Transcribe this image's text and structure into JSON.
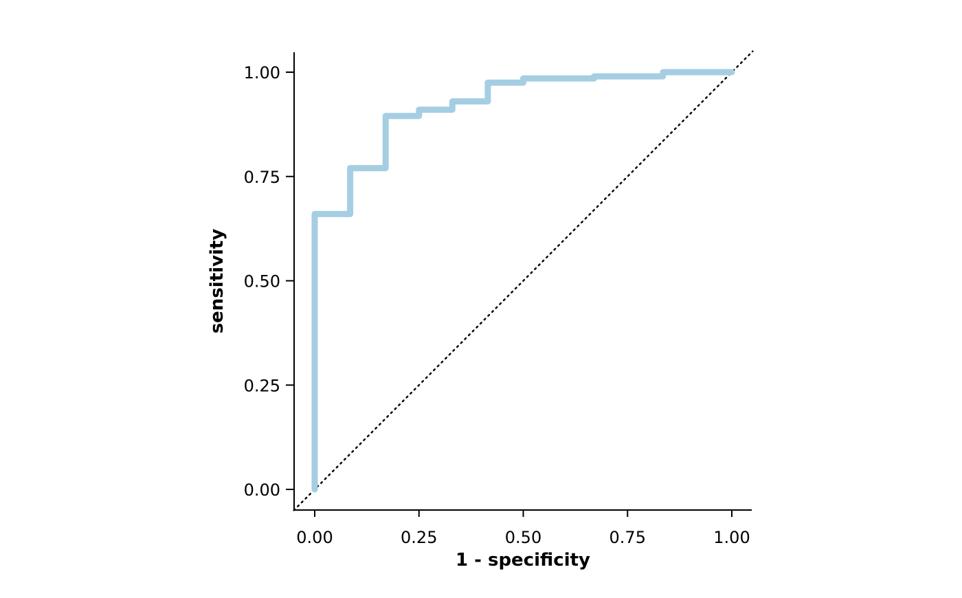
{
  "chart_data": {
    "type": "line",
    "title": "",
    "xlabel": "1 - specificity",
    "ylabel": "sensitivity",
    "xlim": [
      -0.1,
      1.1
    ],
    "ylim": [
      -0.05,
      1.05
    ],
    "x_ticks": [
      0,
      0.25,
      0.5,
      0.75,
      1
    ],
    "y_ticks": [
      0,
      0.25,
      0.5,
      0.75,
      1
    ],
    "x_tick_labels": [
      "0.00",
      "0.25",
      "0.50",
      "0.75",
      "1.00"
    ],
    "y_tick_labels": [
      "0.00",
      "0.25",
      "0.50",
      "0.75",
      "1.00"
    ],
    "grid": false,
    "step": true,
    "series": [
      {
        "color": "#a6cee3",
        "x": [
          0.0,
          0.0,
          0.085,
          0.085,
          0.17,
          0.17,
          0.25,
          0.25,
          0.33,
          0.33,
          0.415,
          0.415,
          0.5,
          0.5,
          0.67,
          0.67,
          0.835,
          0.835,
          1.0
        ],
        "y": [
          0.0,
          0.66,
          0.66,
          0.77,
          0.77,
          0.895,
          0.895,
          0.91,
          0.91,
          0.93,
          0.93,
          0.975,
          0.975,
          0.985,
          0.985,
          0.99,
          0.99,
          1.0,
          1.0
        ]
      }
    ],
    "reference_line": {
      "x": [
        -0.05,
        1.05
      ],
      "y": [
        -0.05,
        1.05
      ],
      "color": "#000000",
      "style": "dotted"
    }
  }
}
